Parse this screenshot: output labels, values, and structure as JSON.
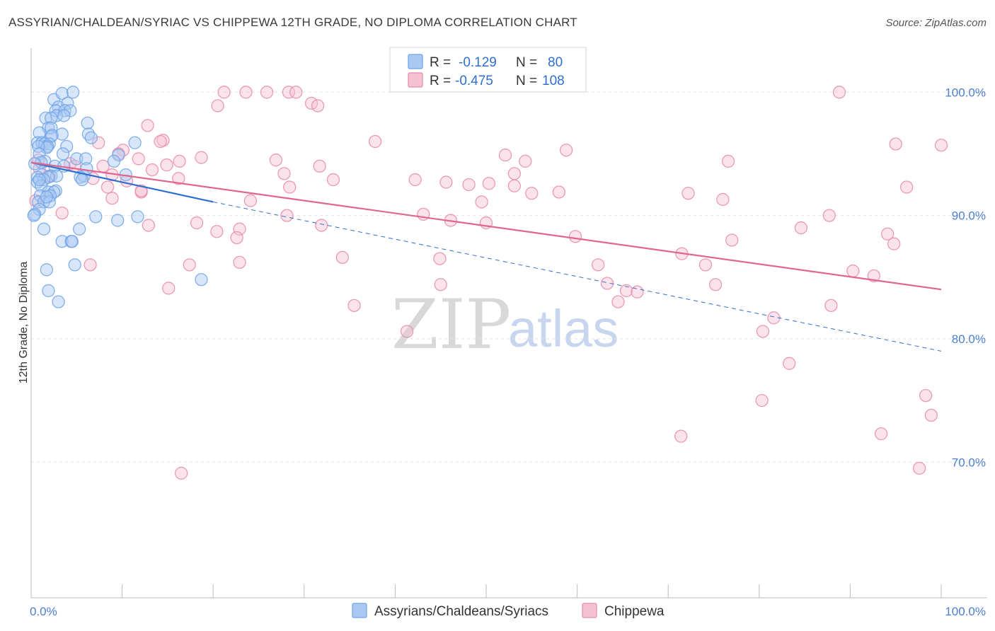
{
  "title": "ASSYRIAN/CHALDEAN/SYRIAC VS CHIPPEWA 12TH GRADE, NO DIPLOMA CORRELATION CHART",
  "source": "Source: ZipAtlas.com",
  "colors": {
    "blue": "#6fa3e8",
    "blue_fill": "#a9c8f2",
    "blue_line": "#2f6fcf",
    "pink": "#e88aaa",
    "pink_fill": "#f6c1d3",
    "pink_line": "#e0668f",
    "grid": "#e2e2e2",
    "tick_text": "#4a7fd0"
  },
  "legend": {
    "row1": {
      "r_label": "R =",
      "r_value": "-0.129",
      "n_label": "N =",
      "n_value": "80"
    },
    "row2": {
      "r_label": "R =",
      "r_value": "-0.475",
      "n_label": "N =",
      "n_value": "108"
    }
  },
  "watermark": {
    "zip": "ZIP",
    "atlas": "atlas"
  },
  "chart_data": {
    "type": "scatter",
    "title": "ASSYRIAN/CHALDEAN/SYRIAC VS CHIPPEWA 12TH GRADE, NO DIPLOMA CORRELATION CHART",
    "xlabel": "",
    "ylabel": "12th Grade, No Diploma",
    "xlim": [
      0,
      100
    ],
    "ylim": [
      59,
      103
    ],
    "x_tick_labels": [
      "0.0%",
      "100.0%"
    ],
    "y_ticks": [
      70,
      80,
      90,
      100
    ],
    "y_tick_labels": [
      "70.0%",
      "80.0%",
      "90.0%",
      "100.0%"
    ],
    "grid": true,
    "legend_position": "top-center",
    "series": [
      {
        "name": "Assyrians/Chaldeans/Syriacs",
        "R": -0.129,
        "N": 80,
        "trend": {
          "x0": 0,
          "y0": 94.3,
          "x1": 20,
          "y1": 91.1,
          "dashed_to_x": 100,
          "dashed_to_y": 79.0
        },
        "points": [
          [
            2.5,
            99.4
          ],
          [
            3.0,
            98.8
          ],
          [
            3.4,
            99.9
          ],
          [
            4.0,
            99.1
          ],
          [
            2.7,
            98.5
          ],
          [
            3.7,
            98.5
          ],
          [
            4.3,
            98.5
          ],
          [
            2.8,
            98.1
          ],
          [
            3.6,
            98.1
          ],
          [
            1.6,
            97.9
          ],
          [
            2.2,
            97.9
          ],
          [
            1.9,
            97.1
          ],
          [
            2.2,
            97.1
          ],
          [
            6.2,
            97.5
          ],
          [
            0.9,
            96.7
          ],
          [
            3.4,
            96.6
          ],
          [
            6.3,
            96.6
          ],
          [
            6.6,
            96.3
          ],
          [
            2.2,
            96.4
          ],
          [
            2.3,
            96.5
          ],
          [
            0.7,
            95.9
          ],
          [
            1.2,
            95.9
          ],
          [
            1.5,
            95.8
          ],
          [
            2.0,
            95.8
          ],
          [
            1.8,
            95.6
          ],
          [
            1.7,
            95.5
          ],
          [
            3.9,
            95.6
          ],
          [
            0.8,
            95.6
          ],
          [
            11.4,
            95.9
          ],
          [
            0.9,
            95.0
          ],
          [
            3.5,
            95.0
          ],
          [
            9.6,
            94.9
          ],
          [
            5.0,
            94.6
          ],
          [
            6.0,
            94.6
          ],
          [
            9.1,
            94.4
          ],
          [
            1.5,
            94.4
          ],
          [
            1.1,
            94.3
          ],
          [
            0.4,
            94.2
          ],
          [
            2.6,
            94.0
          ],
          [
            3.6,
            94.0
          ],
          [
            6.1,
            93.8
          ],
          [
            10.4,
            93.3
          ],
          [
            1.2,
            93.3
          ],
          [
            2.2,
            93.2
          ],
          [
            2.8,
            93.2
          ],
          [
            0.7,
            93.1
          ],
          [
            5.8,
            93.2
          ],
          [
            1.9,
            93.1
          ],
          [
            5.4,
            93.1
          ],
          [
            1.4,
            92.9
          ],
          [
            5.6,
            92.9
          ],
          [
            0.7,
            92.7
          ],
          [
            1.1,
            92.4
          ],
          [
            2.7,
            92.0
          ],
          [
            1.9,
            91.9
          ],
          [
            2.5,
            91.9
          ],
          [
            1.0,
            91.6
          ],
          [
            2.1,
            91.6
          ],
          [
            0.8,
            91.1
          ],
          [
            1.4,
            91.1
          ],
          [
            2.0,
            91.1
          ],
          [
            0.9,
            90.5
          ],
          [
            0.4,
            90.1
          ],
          [
            7.1,
            89.9
          ],
          [
            9.5,
            89.6
          ],
          [
            11.7,
            89.9
          ],
          [
            1.4,
            88.9
          ],
          [
            5.3,
            88.9
          ],
          [
            3.4,
            87.9
          ],
          [
            4.4,
            87.9
          ],
          [
            4.5,
            87.9
          ],
          [
            4.8,
            86.0
          ],
          [
            1.7,
            85.6
          ],
          [
            18.7,
            84.8
          ],
          [
            1.9,
            83.9
          ],
          [
            3.0,
            83.0
          ],
          [
            4.6,
            100.0
          ],
          [
            0.9,
            92.9
          ],
          [
            1.7,
            91.5
          ],
          [
            0.3,
            90.0
          ]
        ]
      },
      {
        "name": "Chippewa",
        "R": -0.475,
        "N": 108,
        "trend": {
          "x0": 0,
          "y0": 94.3,
          "x1": 100,
          "y1": 84.0
        },
        "points": [
          [
            21.2,
            100.0
          ],
          [
            23.6,
            100.0
          ],
          [
            25.9,
            100.0
          ],
          [
            28.3,
            100.0
          ],
          [
            29.1,
            100.0
          ],
          [
            88.8,
            100.0
          ],
          [
            20.5,
            98.9
          ],
          [
            30.8,
            99.1
          ],
          [
            31.5,
            98.9
          ],
          [
            12.8,
            97.3
          ],
          [
            14.5,
            96.1
          ],
          [
            14.2,
            96.0
          ],
          [
            7.4,
            95.9
          ],
          [
            37.8,
            96.0
          ],
          [
            95.0,
            95.8
          ],
          [
            100.0,
            95.7
          ],
          [
            10.1,
            95.3
          ],
          [
            9.6,
            95.0
          ],
          [
            0.8,
            94.5
          ],
          [
            11.8,
            94.6
          ],
          [
            16.3,
            94.4
          ],
          [
            18.7,
            94.7
          ],
          [
            26.9,
            94.5
          ],
          [
            52.1,
            94.9
          ],
          [
            54.3,
            94.4
          ],
          [
            76.6,
            94.4
          ],
          [
            4.3,
            94.2
          ],
          [
            4.8,
            94.0
          ],
          [
            14.9,
            94.1
          ],
          [
            31.7,
            94.0
          ],
          [
            7.9,
            94.0
          ],
          [
            13.3,
            93.7
          ],
          [
            8.9,
            93.3
          ],
          [
            2.0,
            93.2
          ],
          [
            16.2,
            93.0
          ],
          [
            33.2,
            92.9
          ],
          [
            42.2,
            92.9
          ],
          [
            45.6,
            92.7
          ],
          [
            48.1,
            92.5
          ],
          [
            50.3,
            92.6
          ],
          [
            53.1,
            93.4
          ],
          [
            53.1,
            92.4
          ],
          [
            8.4,
            92.3
          ],
          [
            10.5,
            92.8
          ],
          [
            28.4,
            92.3
          ],
          [
            12.1,
            91.9
          ],
          [
            55.0,
            91.8
          ],
          [
            58.0,
            91.9
          ],
          [
            72.2,
            91.8
          ],
          [
            76.0,
            91.3
          ],
          [
            96.2,
            92.3
          ],
          [
            8.9,
            91.4
          ],
          [
            24.1,
            91.2
          ],
          [
            49.5,
            91.1
          ],
          [
            0.5,
            91.2
          ],
          [
            3.4,
            90.2
          ],
          [
            28.1,
            90.0
          ],
          [
            43.1,
            90.1
          ],
          [
            87.7,
            90.0
          ],
          [
            46.1,
            89.6
          ],
          [
            50.0,
            89.4
          ],
          [
            18.2,
            89.4
          ],
          [
            12.9,
            89.2
          ],
          [
            31.9,
            89.2
          ],
          [
            22.9,
            88.9
          ],
          [
            20.4,
            88.7
          ],
          [
            84.6,
            89.0
          ],
          [
            94.1,
            88.5
          ],
          [
            59.8,
            88.3
          ],
          [
            22.6,
            88.2
          ],
          [
            77.0,
            88.0
          ],
          [
            94.8,
            87.7
          ],
          [
            71.5,
            86.9
          ],
          [
            34.2,
            86.6
          ],
          [
            44.9,
            86.5
          ],
          [
            6.5,
            86.0
          ],
          [
            17.4,
            86.0
          ],
          [
            22.9,
            86.2
          ],
          [
            62.3,
            86.0
          ],
          [
            74.1,
            86.0
          ],
          [
            90.3,
            85.5
          ],
          [
            92.6,
            85.1
          ],
          [
            63.3,
            84.5
          ],
          [
            75.2,
            84.4
          ],
          [
            45.0,
            84.4
          ],
          [
            15.1,
            84.1
          ],
          [
            65.4,
            83.9
          ],
          [
            66.6,
            83.8
          ],
          [
            64.5,
            83.0
          ],
          [
            35.5,
            82.7
          ],
          [
            87.9,
            82.7
          ],
          [
            81.6,
            81.7
          ],
          [
            41.3,
            80.6
          ],
          [
            80.4,
            80.6
          ],
          [
            83.3,
            78.0
          ],
          [
            80.3,
            75.0
          ],
          [
            98.3,
            75.4
          ],
          [
            98.9,
            73.8
          ],
          [
            93.4,
            72.3
          ],
          [
            71.4,
            72.1
          ],
          [
            97.6,
            69.5
          ],
          [
            16.5,
            69.1
          ],
          [
            6.8,
            93.0
          ],
          [
            0.9,
            93.8
          ],
          [
            12.1,
            92.0
          ],
          [
            27.8,
            93.4
          ],
          [
            58.8,
            95.3
          ]
        ]
      }
    ]
  },
  "bottom_legend": [
    {
      "label": "Assyrians/Chaldeans/Syriacs"
    },
    {
      "label": "Chippewa"
    }
  ]
}
